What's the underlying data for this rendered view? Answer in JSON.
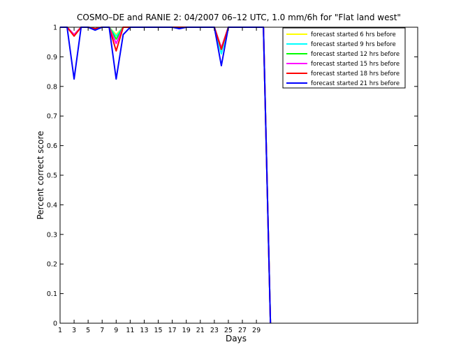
{
  "chart_data": {
    "type": "line",
    "title": "COSMO–DE and RANIE 2: 04/2007 06–12 UTC, 1.0 mm/6h for \"Flat land west\"",
    "xlabel": "Days",
    "ylabel": "Percent correct score",
    "xlim": [
      1,
      52
    ],
    "ylim": [
      0,
      1
    ],
    "xticks": [
      1,
      3,
      5,
      7,
      9,
      11,
      13,
      15,
      17,
      19,
      21,
      23,
      25,
      27,
      29
    ],
    "yticks": [
      0,
      0.1,
      0.2,
      0.3,
      0.4,
      0.5,
      0.6,
      0.7,
      0.8,
      0.9,
      1
    ],
    "ytick_labels": [
      "0",
      "0.1",
      "0.2",
      "0.3",
      "0.4",
      "0.5",
      "0.6",
      "0.7",
      "0.8",
      "0.9",
      "1"
    ],
    "grid": false,
    "legend_position": "top-right",
    "x": [
      1,
      2,
      3,
      4,
      5,
      6,
      7,
      8,
      9,
      10,
      11,
      12,
      13,
      14,
      15,
      16,
      17,
      18,
      19,
      20,
      21,
      22,
      23,
      24,
      25,
      26,
      27,
      28,
      29,
      30,
      31
    ],
    "series": [
      {
        "name": "forecast started 6 hrs before",
        "color": "#ffff00",
        "values": [
          1,
          1,
          0.975,
          1,
          1,
          0.995,
          1,
          1,
          0.975,
          1,
          1,
          1,
          1,
          1,
          1,
          1,
          1,
          1,
          1,
          1,
          1,
          1,
          1,
          0.93,
          1,
          1,
          1,
          1,
          1,
          1,
          0
        ]
      },
      {
        "name": "forecast started 9 hrs before",
        "color": "#00ffff",
        "values": [
          1,
          1,
          0.975,
          1,
          1,
          0.995,
          1,
          1,
          0.97,
          1,
          1,
          1,
          1,
          1,
          1,
          1,
          1,
          1,
          1,
          1,
          1,
          1,
          1,
          0.91,
          1,
          1,
          1,
          1,
          1,
          1,
          0
        ]
      },
      {
        "name": "forecast started 12 hrs before",
        "color": "#00ff00",
        "values": [
          1,
          1,
          0.975,
          1,
          1,
          0.995,
          1,
          1,
          0.96,
          1,
          1,
          1,
          1,
          1,
          1,
          1,
          1,
          1,
          1,
          1,
          1,
          1,
          1,
          0.93,
          1,
          1,
          1,
          1,
          1,
          1,
          0
        ]
      },
      {
        "name": "forecast started 15 hrs before",
        "color": "#ff00ff",
        "values": [
          1,
          1,
          0.975,
          1,
          1,
          0.995,
          1,
          1,
          0.945,
          1,
          1,
          1,
          1,
          1,
          1,
          1,
          1,
          1,
          1,
          1,
          1,
          1,
          1,
          0.93,
          1,
          1,
          1,
          1,
          1,
          1,
          0
        ]
      },
      {
        "name": "forecast started 18 hrs before",
        "color": "#ff0000",
        "values": [
          1,
          1,
          0.97,
          1,
          1,
          0.995,
          1,
          1,
          0.92,
          1,
          1,
          1,
          1,
          1,
          1,
          1,
          1,
          1,
          1,
          1,
          1,
          1,
          1,
          0.925,
          1,
          1,
          1,
          1,
          1,
          1,
          0
        ]
      },
      {
        "name": "forecast started 21 hrs before",
        "color": "#0000ff",
        "values": [
          1,
          1,
          0.825,
          1,
          1,
          0.99,
          1,
          1,
          0.825,
          0.975,
          1,
          1,
          1,
          1,
          1,
          1,
          1,
          0.995,
          1,
          1,
          1,
          1,
          1,
          0.87,
          1,
          1,
          1,
          1,
          1,
          1,
          0
        ]
      }
    ]
  }
}
